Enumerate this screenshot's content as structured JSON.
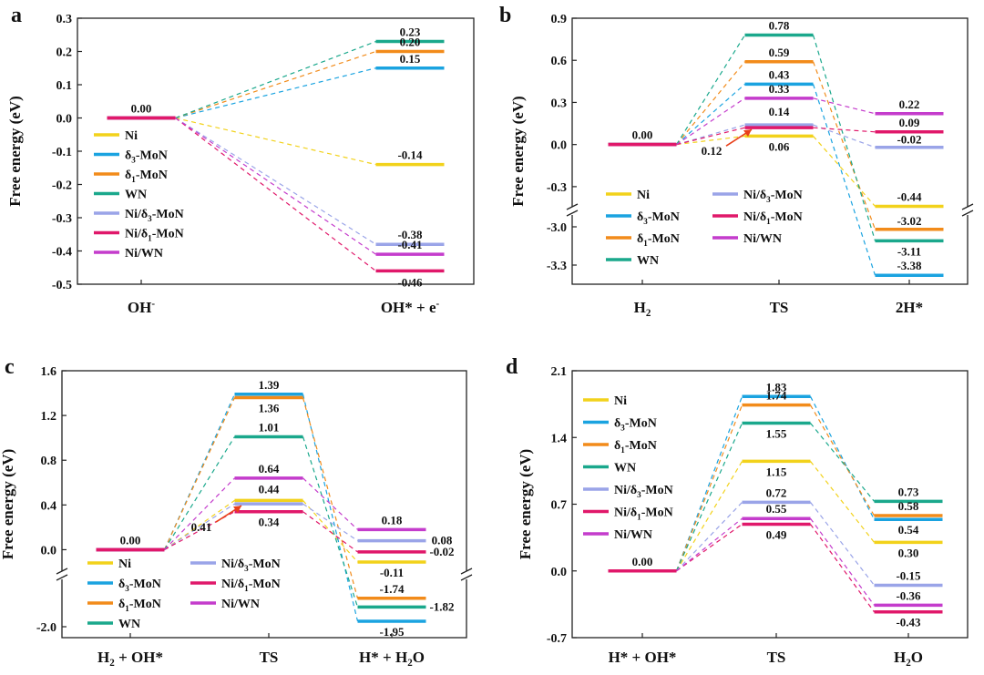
{
  "figure": {
    "series_names": [
      "Ni",
      "δ3-MoN",
      "δ1-MoN",
      "WN",
      "Ni/δ3-MoN",
      "Ni/δ1-MoN",
      "Ni/WN"
    ],
    "series_colors": {
      "Ni": "#f2d21b",
      "δ3-MoN": "#1aa3e0",
      "δ1-MoN": "#f28b1a",
      "WN": "#1aa88c",
      "Ni/δ3-MoN": "#9aa4e8",
      "Ni/δ1-MoN": "#e0186a",
      "Ni/WN": "#c43ccc"
    },
    "legend_entries": [
      {
        "series": "Ni",
        "base": "Ni",
        "sub": "",
        "tail": ""
      },
      {
        "series": "δ3-MoN",
        "base": "δ",
        "sub": "3",
        "tail": "-MoN"
      },
      {
        "series": "δ1-MoN",
        "base": "δ",
        "sub": "1",
        "tail": "-MoN"
      },
      {
        "series": "WN",
        "base": "WN",
        "sub": "",
        "tail": ""
      },
      {
        "series": "Ni/δ3-MoN",
        "base": "Ni/δ",
        "sub": "3",
        "tail": "-MoN"
      },
      {
        "series": "Ni/δ1-MoN",
        "base": "Ni/δ",
        "sub": "1",
        "tail": "-MoN"
      },
      {
        "series": "Ni/WN",
        "base": "Ni/WN",
        "sub": "",
        "tail": ""
      }
    ]
  },
  "chart_data": [
    {
      "panel": "a",
      "type": "line",
      "chart_kind": "free energy diagram",
      "ylabel": "Free energy (eV)",
      "ylim": [
        -0.5,
        0.3
      ],
      "yticks": [
        "0.3",
        "0.2",
        "0.1",
        "0.0",
        "-0.1",
        "-0.2",
        "-0.3",
        "-0.4",
        "-0.5"
      ],
      "states": [
        {
          "base": "OH",
          "sup": "-",
          "sub": "",
          "tail": ""
        },
        {
          "base": "OH* + e",
          "sup": "-",
          "sub": "",
          "tail": ""
        }
      ],
      "series": [
        {
          "name": "Ni",
          "values": [
            0.0,
            -0.14
          ],
          "labels": [
            "",
            "-0.14"
          ]
        },
        {
          "name": "δ3-MoN",
          "values": [
            0.0,
            0.15
          ],
          "labels": [
            "",
            "0.15"
          ]
        },
        {
          "name": "δ1-MoN",
          "values": [
            0.0,
            0.2
          ],
          "labels": [
            "",
            "0.20"
          ]
        },
        {
          "name": "WN",
          "values": [
            0.0,
            0.23
          ],
          "labels": [
            "",
            "0.23"
          ]
        },
        {
          "name": "Ni/δ3-MoN",
          "values": [
            0.0,
            -0.38
          ],
          "labels": [
            "",
            "-0.38"
          ]
        },
        {
          "name": "Ni/δ1-MoN",
          "values": [
            0.0,
            -0.46
          ],
          "labels": [
            "",
            "-0.46"
          ]
        },
        {
          "name": "Ni/WN",
          "values": [
            0.0,
            -0.41
          ],
          "labels": [
            "",
            "-0.41"
          ]
        }
      ],
      "start_label": "0.00",
      "annotation": null
    },
    {
      "panel": "b",
      "type": "line",
      "chart_kind": "free energy diagram with broken axis",
      "ylabel": "Free energy (eV)",
      "ylim_upper": [
        -0.45,
        0.9
      ],
      "ylim_lower": [
        -3.45,
        -2.95
      ],
      "yticks": [
        "0.9",
        "0.6",
        "0.3",
        "0.0",
        "-0.3",
        "-3.0",
        "-3.3"
      ],
      "states": [
        {
          "base": "H",
          "sup": "",
          "sub": "2",
          "tail": ""
        },
        {
          "base": "TS",
          "sup": "",
          "sub": "",
          "tail": ""
        },
        {
          "base": "2H*",
          "sup": "",
          "sub": "",
          "tail": ""
        }
      ],
      "series": [
        {
          "name": "Ni",
          "values": [
            0.0,
            0.06,
            -0.44
          ],
          "labels": [
            "",
            "0.06",
            "-0.44"
          ]
        },
        {
          "name": "δ3-MoN",
          "values": [
            0.0,
            0.43,
            -3.38
          ],
          "labels": [
            "",
            "0.43",
            "-3.38"
          ]
        },
        {
          "name": "δ1-MoN",
          "values": [
            0.0,
            0.59,
            -3.02
          ],
          "labels": [
            "",
            "0.59",
            "-3.02"
          ]
        },
        {
          "name": "WN",
          "values": [
            0.0,
            0.78,
            -3.11
          ],
          "labels": [
            "",
            "0.78",
            "-3.11"
          ]
        },
        {
          "name": "Ni/δ3-MoN",
          "values": [
            0.0,
            0.14,
            -0.02
          ],
          "labels": [
            "",
            "0.14",
            "-0.02"
          ]
        },
        {
          "name": "Ni/δ1-MoN",
          "values": [
            0.0,
            0.12,
            0.09
          ],
          "labels": [
            "",
            "",
            "0.09"
          ]
        },
        {
          "name": "Ni/WN",
          "values": [
            0.0,
            0.33,
            0.22
          ],
          "labels": [
            "",
            "0.33",
            "0.22"
          ]
        }
      ],
      "start_label": "0.00",
      "annotation": {
        "text": "0.12",
        "series": "Ni/δ1-MoN",
        "state": 1
      }
    },
    {
      "panel": "c",
      "type": "line",
      "chart_kind": "free energy diagram with broken axis",
      "ylabel": "Free energy (eV)",
      "ylim_upper": [
        -0.2,
        1.6
      ],
      "ylim_lower": [
        -2.1,
        -1.6
      ],
      "yticks": [
        "1.6",
        "1.2",
        "0.8",
        "0.4",
        "0.0",
        "-2.0"
      ],
      "states": [
        {
          "base": "H",
          "sup": "",
          "sub": "2",
          "tail": " + OH*"
        },
        {
          "base": "TS",
          "sup": "",
          "sub": "",
          "tail": ""
        },
        {
          "base": "H* + H",
          "sup": "",
          "sub": "2",
          "tail": "O"
        }
      ],
      "series": [
        {
          "name": "Ni",
          "values": [
            0.0,
            0.44,
            -0.11
          ],
          "labels": [
            "",
            "0.44",
            "-0.11"
          ]
        },
        {
          "name": "δ3-MoN",
          "values": [
            0.0,
            1.39,
            -1.95
          ],
          "labels": [
            "",
            "1.39",
            "-1.95"
          ]
        },
        {
          "name": "δ1-MoN",
          "values": [
            0.0,
            1.36,
            -1.74
          ],
          "labels": [
            "",
            "1.36",
            "-1.74"
          ]
        },
        {
          "name": "WN",
          "values": [
            0.0,
            1.01,
            -1.82
          ],
          "labels": [
            "",
            "1.01",
            "-1.82"
          ]
        },
        {
          "name": "Ni/δ3-MoN",
          "values": [
            0.0,
            0.41,
            0.08
          ],
          "labels": [
            "",
            "",
            "0.08"
          ]
        },
        {
          "name": "Ni/δ1-MoN",
          "values": [
            0.0,
            0.34,
            -0.02
          ],
          "labels": [
            "",
            "0.34",
            "-0.02"
          ]
        },
        {
          "name": "Ni/WN",
          "values": [
            0.0,
            0.64,
            0.18
          ],
          "labels": [
            "",
            "0.64",
            "0.18"
          ]
        }
      ],
      "start_label": "0.00",
      "annotation": {
        "text": "0.41",
        "series": "Ni/δ3-MoN",
        "state": 1
      }
    },
    {
      "panel": "d",
      "type": "line",
      "chart_kind": "free energy diagram",
      "ylabel": "Free energy (eV)",
      "ylim": [
        -0.7,
        2.1
      ],
      "yticks": [
        "2.1",
        "1.4",
        "0.7",
        "0.0",
        "-0.7"
      ],
      "states": [
        {
          "base": "H* + OH*",
          "sup": "",
          "sub": "",
          "tail": ""
        },
        {
          "base": "TS",
          "sup": "",
          "sub": "",
          "tail": ""
        },
        {
          "base": "H",
          "sup": "",
          "sub": "2",
          "tail": "O"
        }
      ],
      "series": [
        {
          "name": "Ni",
          "values": [
            0.0,
            1.15,
            0.3
          ],
          "labels": [
            "",
            "1.15",
            "0.30"
          ]
        },
        {
          "name": "δ3-MoN",
          "values": [
            0.0,
            1.83,
            0.54
          ],
          "labels": [
            "",
            "1.83",
            "0.54"
          ]
        },
        {
          "name": "δ1-MoN",
          "values": [
            0.0,
            1.74,
            0.58
          ],
          "labels": [
            "",
            "1.74",
            "0.58"
          ]
        },
        {
          "name": "WN",
          "values": [
            0.0,
            1.55,
            0.73
          ],
          "labels": [
            "",
            "1.55",
            "0.73"
          ]
        },
        {
          "name": "Ni/δ3-MoN",
          "values": [
            0.0,
            0.72,
            -0.15
          ],
          "labels": [
            "",
            "0.72",
            "-0.15"
          ]
        },
        {
          "name": "Ni/δ1-MoN",
          "values": [
            0.0,
            0.49,
            -0.43
          ],
          "labels": [
            "",
            "0.49",
            "-0.43"
          ]
        },
        {
          "name": "Ni/WN",
          "values": [
            0.0,
            0.55,
            -0.36
          ],
          "labels": [
            "",
            "0.55",
            "-0.36"
          ]
        }
      ],
      "start_label": "0.00",
      "annotation": null
    }
  ]
}
